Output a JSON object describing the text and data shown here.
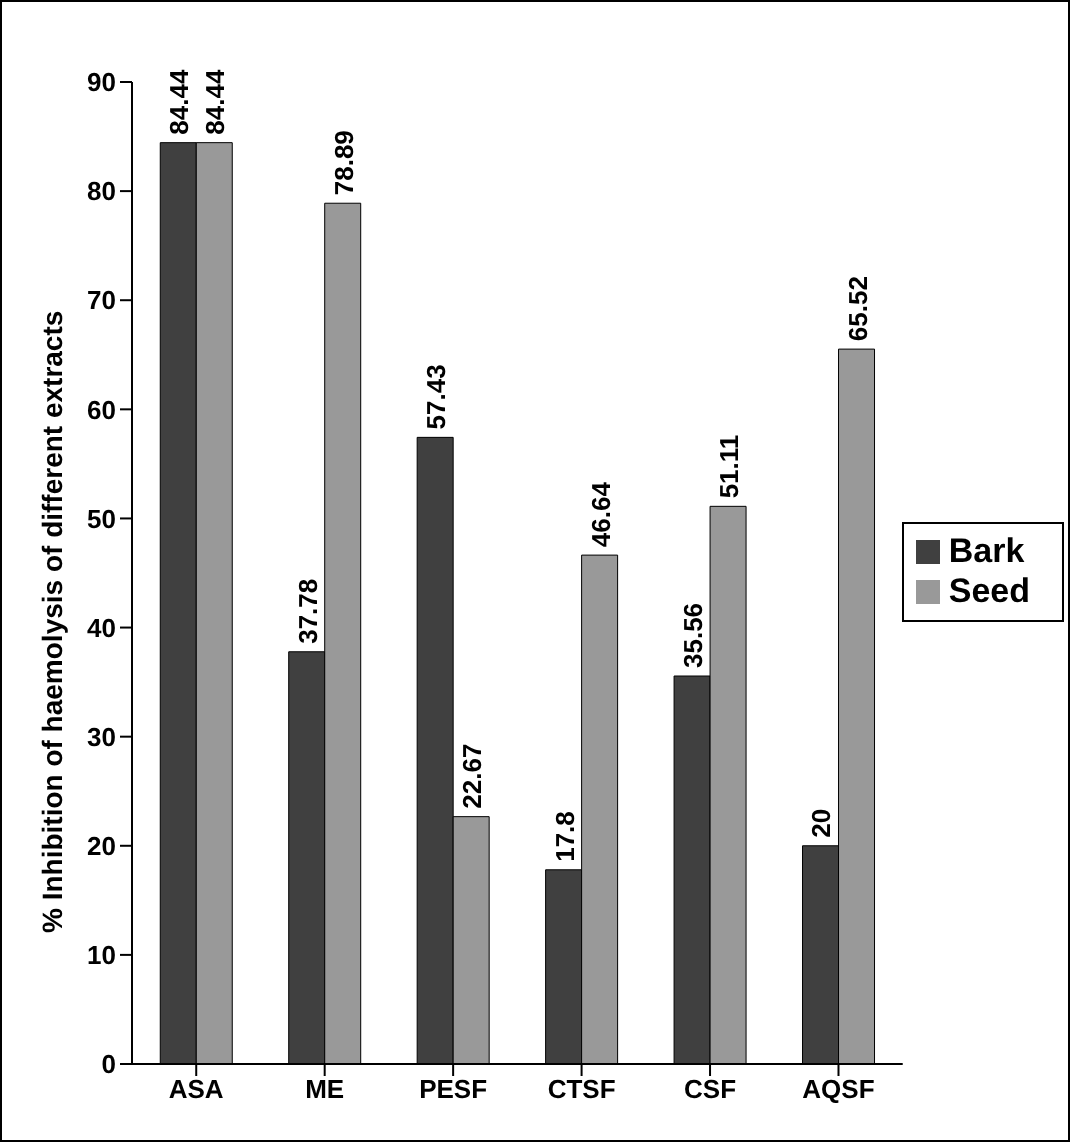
{
  "chart_data": {
    "type": "bar",
    "ylabel": "% Inhibition of haemolysis of different extracts",
    "categories": [
      "ASA",
      "ME",
      "PESF",
      "CTSF",
      "CSF",
      "AQSF"
    ],
    "series": [
      {
        "name": "Bark",
        "color": "#404040",
        "values": [
          84.44,
          37.78,
          57.43,
          17.8,
          35.56,
          20
        ]
      },
      {
        "name": "Seed",
        "color": "#999999",
        "values": [
          84.44,
          78.89,
          22.67,
          46.64,
          51.11,
          65.52
        ]
      }
    ],
    "ylim": [
      0,
      90
    ],
    "yticks": [
      0,
      10,
      20,
      30,
      40,
      50,
      60,
      70,
      80,
      90
    ],
    "grid": false,
    "legend": "right",
    "data_labels": true
  }
}
